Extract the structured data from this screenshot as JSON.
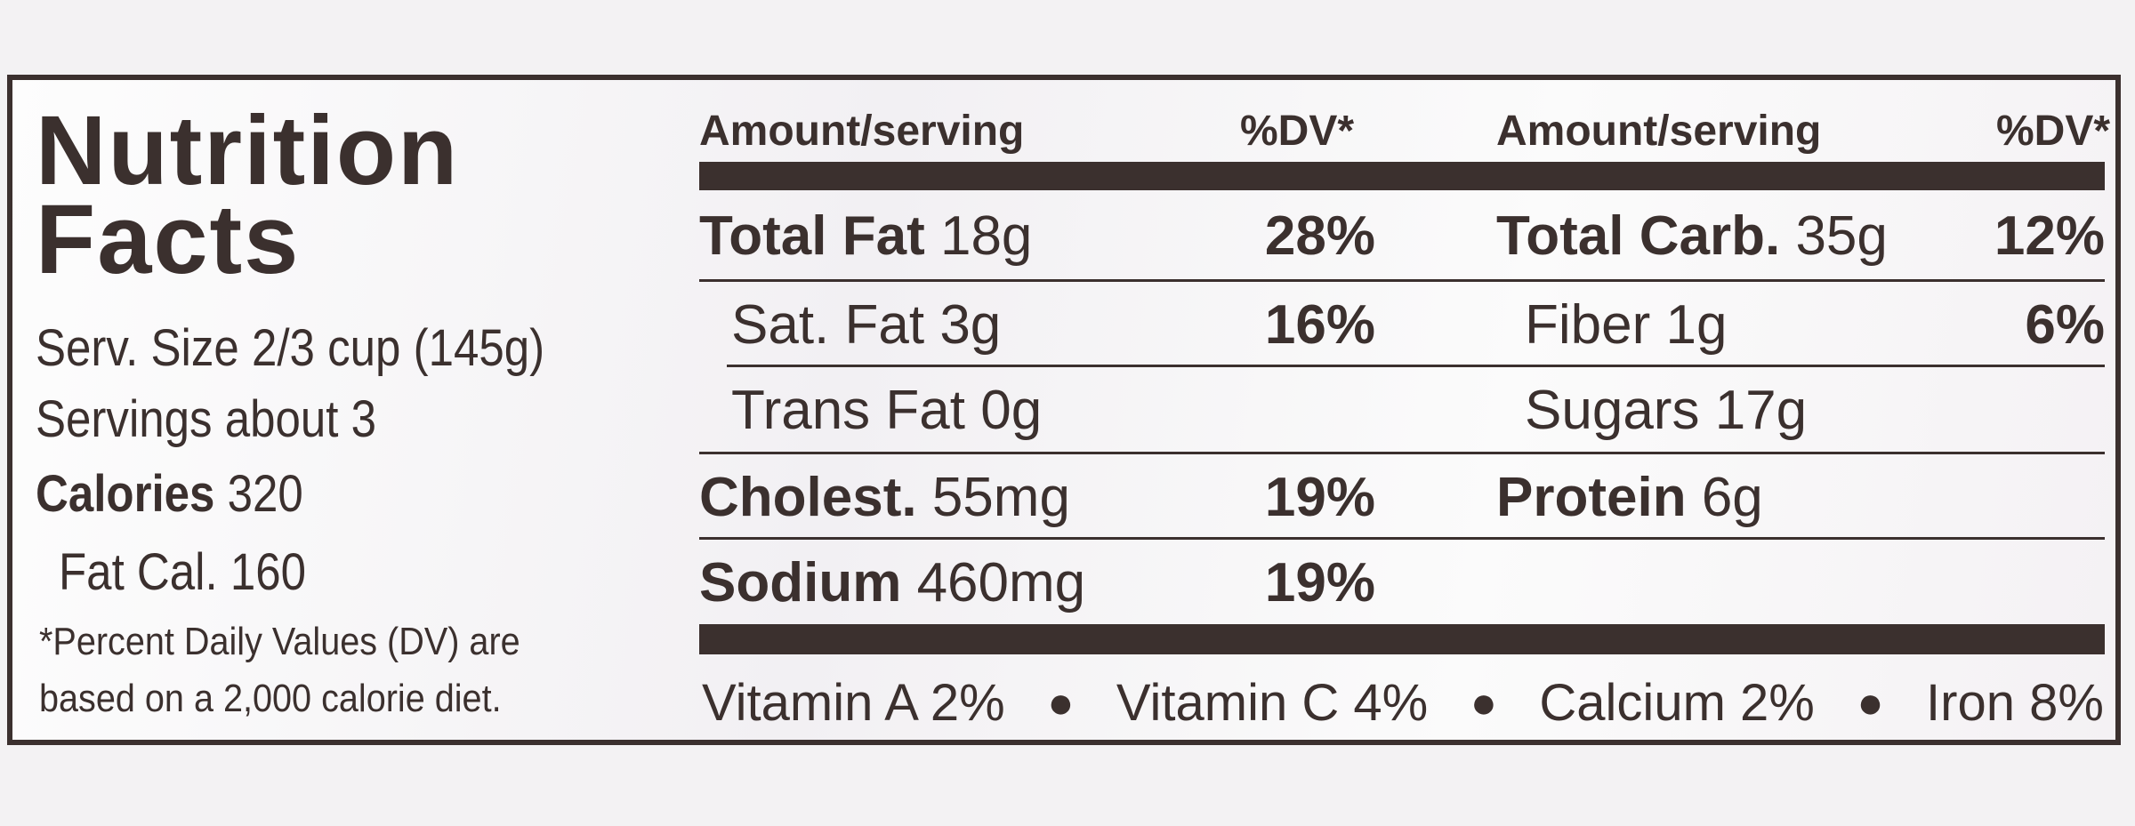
{
  "title": "Nutrition Facts",
  "serving": {
    "size": "Serv. Size 2/3 cup (145g)",
    "servings": "Servings about 3",
    "calories_label": "Calories",
    "calories": "320",
    "fat_calories": "Fat Cal. 160"
  },
  "footnote": "*Percent Daily Values (DV) are based on a 2,000 calorie diet.",
  "headers": [
    "Amount/serving",
    "%DV*",
    "Amount/serving",
    "%DV*"
  ],
  "left_rows": [
    {
      "name": "Total Fat",
      "amount": "18g",
      "dv": "28%"
    },
    {
      "name": "Sat. Fat",
      "amount": "3g",
      "dv": "16%"
    },
    {
      "name": "Trans Fat",
      "amount": "0g"
    },
    {
      "name": "Cholest.",
      "amount": "55mg",
      "dv": "19%"
    },
    {
      "name": "Sodium",
      "amount": "460mg",
      "dv": "19%"
    }
  ],
  "right_rows": [
    {
      "name": "Total Carb.",
      "amount": "35g",
      "dv": "12%"
    },
    {
      "name": "Fiber",
      "amount": "1g",
      "dv": "6%"
    },
    {
      "name": "Sugars",
      "amount": "17g"
    },
    {
      "name": "Protein",
      "amount": "6g"
    }
  ],
  "vitamins": [
    "Vitamin A 2%",
    "Vitamin C 4%",
    "Calcium 2%",
    "Iron 8%"
  ]
}
